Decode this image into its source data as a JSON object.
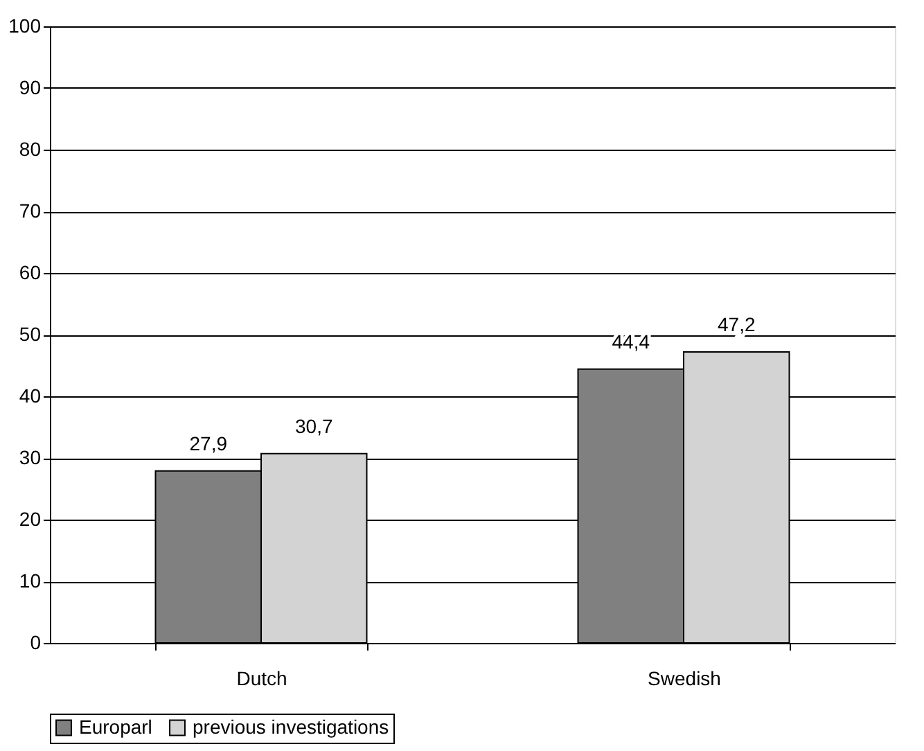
{
  "chart_data": {
    "type": "bar",
    "categories": [
      "Dutch",
      "Swedish"
    ],
    "series": [
      {
        "name": "Europarl",
        "color": "#808080",
        "values": [
          27.9,
          44.4
        ],
        "value_labels": [
          "27,9",
          "44,4"
        ]
      },
      {
        "name": "previous investigations",
        "color": "#d3d3d3",
        "values": [
          30.7,
          47.2
        ],
        "value_labels": [
          "30,7",
          "47,2"
        ]
      }
    ],
    "ylim": [
      0,
      100
    ],
    "yticks": [
      0,
      10,
      20,
      30,
      40,
      50,
      60,
      70,
      80,
      90,
      100
    ],
    "grid": "y",
    "legend": "bottom"
  }
}
